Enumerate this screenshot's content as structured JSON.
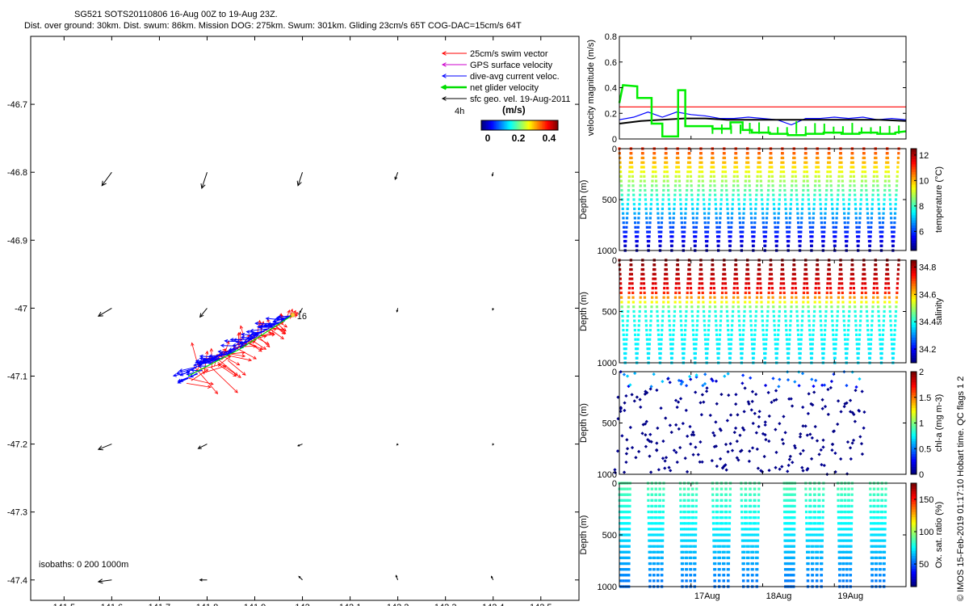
{
  "header": {
    "line1": "SG521 SOTS20110806 16-Aug 00Z to 19-Aug 23Z.",
    "line2": "Dist. over ground: 30km. Dist. swum: 86km. Mission DOG: 275km. Swum: 301km. Gliding 23cm/s 65T COG-DAC=15cm/s 64T"
  },
  "copyright": "© IMOS 15-Feb-2019 01:17:10 Hobart time. QC flags 1  2",
  "colors": {
    "swim": "#ff0000",
    "gps": "#cc00cc",
    "dac": "#0000ff",
    "net": "#00dd00",
    "geo": "#000000"
  },
  "chart_data": [
    {
      "type": "vector-map",
      "xlim": [
        141.43,
        142.58
      ],
      "ylim": [
        -47.43,
        -46.6
      ],
      "xticks": [
        "141.5",
        "141.6",
        "141.7",
        "141.8",
        "141.9",
        "142",
        "142.1",
        "142.2",
        "142.3",
        "142.4",
        "142.5"
      ],
      "yticks": [
        "-46.7",
        "-46.8",
        "-46.9",
        "-47",
        "-47.1",
        "-47.2",
        "-47.3",
        "-47.4"
      ],
      "legend": [
        {
          "label": "25cm/s swim vector",
          "color": "#ff0000"
        },
        {
          "label": "GPS surface velocity",
          "color": "#cc00cc"
        },
        {
          "label": "dive-avg current veloc.",
          "color": "#0000ff"
        },
        {
          "label": "net glider velocity",
          "color": "#00dd00"
        },
        {
          "label": "sfc geo. vel. 19-Aug-2011",
          "color": "#000000"
        }
      ],
      "colorbar": {
        "title": "(m/s)",
        "ticks": [
          "0",
          "0.2",
          "0.4"
        ],
        "range": [
          0,
          0.5
        ]
      },
      "time_marker": "4h",
      "day_label": "16",
      "isobaths_label": "isobaths: 0   200  1000m",
      "geo_vectors": [
        {
          "lon": 141.6,
          "lat": -46.8,
          "u": -0.11,
          "v": -0.15
        },
        {
          "lon": 141.8,
          "lat": -46.8,
          "u": -0.06,
          "v": -0.18
        },
        {
          "lon": 142.0,
          "lat": -46.8,
          "u": -0.05,
          "v": -0.15
        },
        {
          "lon": 142.2,
          "lat": -46.8,
          "u": -0.03,
          "v": -0.08
        },
        {
          "lon": 142.4,
          "lat": -46.8,
          "u": -0.01,
          "v": -0.04
        },
        {
          "lon": 141.6,
          "lat": -47.0,
          "u": -0.15,
          "v": -0.09
        },
        {
          "lon": 141.8,
          "lat": -47.0,
          "u": -0.08,
          "v": -0.1
        },
        {
          "lon": 142.0,
          "lat": -47.0,
          "u": -0.03,
          "v": -0.05
        },
        {
          "lon": 142.2,
          "lat": -47.0,
          "u": -0.01,
          "v": -0.04
        },
        {
          "lon": 142.4,
          "lat": -47.0,
          "u": -0.005,
          "v": -0.02
        },
        {
          "lon": 141.6,
          "lat": -47.2,
          "u": -0.15,
          "v": -0.06
        },
        {
          "lon": 141.8,
          "lat": -47.2,
          "u": -0.1,
          "v": -0.05
        },
        {
          "lon": 142.0,
          "lat": -47.2,
          "u": -0.05,
          "v": -0.02
        },
        {
          "lon": 142.2,
          "lat": -47.2,
          "u": -0.01,
          "v": -0.01
        },
        {
          "lon": 142.4,
          "lat": -47.2,
          "u": -0.005,
          "v": -0.01
        },
        {
          "lon": 141.6,
          "lat": -47.4,
          "u": -0.15,
          "v": -0.02
        },
        {
          "lon": 141.8,
          "lat": -47.4,
          "u": -0.08,
          "v": 0.0
        },
        {
          "lon": 142.0,
          "lat": -47.4,
          "u": -0.04,
          "v": 0.04
        },
        {
          "lon": 142.2,
          "lat": -47.4,
          "u": -0.02,
          "v": 0.05
        },
        {
          "lon": 142.4,
          "lat": -47.4,
          "u": -0.02,
          "v": 0.04
        }
      ],
      "track_start": {
        "lon": 141.98,
        "lat": -47.01
      },
      "track_end": {
        "lon": 141.76,
        "lat": -47.1
      }
    },
    {
      "type": "line",
      "ylabel": "velocity magnitude (m/s)",
      "ylim": [
        0,
        0.8
      ],
      "yticks": [
        "0",
        "0.2",
        "0.4",
        "0.6",
        "0.8"
      ],
      "xlim": [
        16.0,
        20.0
      ],
      "series": [
        {
          "color": "#ff0000",
          "x": [
            16.0,
            20.0
          ],
          "y": [
            0.25,
            0.25
          ]
        },
        {
          "color": "#0000ff",
          "x": [
            16.0,
            16.2,
            16.4,
            16.6,
            16.8,
            17.0,
            17.2,
            17.4,
            17.6,
            17.8,
            18.0,
            18.2,
            18.4,
            18.6,
            18.8,
            19.0,
            19.2,
            19.4,
            19.6,
            19.8,
            20.0
          ],
          "y": [
            0.15,
            0.17,
            0.21,
            0.17,
            0.21,
            0.19,
            0.18,
            0.16,
            0.16,
            0.17,
            0.16,
            0.15,
            0.11,
            0.16,
            0.16,
            0.17,
            0.16,
            0.17,
            0.15,
            0.16,
            0.15
          ]
        },
        {
          "color": "#000000",
          "x": [
            16.0,
            16.3,
            16.6,
            16.9,
            17.2,
            17.5,
            17.8,
            18.1,
            18.4,
            18.7,
            19.0,
            19.3,
            19.6,
            20.0
          ],
          "y": [
            0.12,
            0.14,
            0.15,
            0.16,
            0.16,
            0.15,
            0.15,
            0.15,
            0.15,
            0.15,
            0.15,
            0.15,
            0.15,
            0.14
          ]
        },
        {
          "color": "#00ee00",
          "x": [
            16.0,
            16.05,
            16.25,
            16.25,
            16.45,
            16.45,
            16.6,
            16.6,
            16.82,
            16.82,
            16.92,
            16.92,
            17.3,
            17.3,
            17.55,
            17.55,
            17.72,
            17.72,
            17.85,
            17.85,
            18.1,
            18.1,
            18.35,
            18.35,
            18.6,
            18.6,
            18.85,
            18.85,
            19.1,
            19.1,
            19.35,
            19.35,
            19.6,
            19.6,
            19.85,
            19.85,
            20.0
          ],
          "y": [
            0.28,
            0.42,
            0.41,
            0.32,
            0.32,
            0.12,
            0.12,
            0.02,
            0.02,
            0.38,
            0.38,
            0.1,
            0.1,
            0.08,
            0.08,
            0.13,
            0.13,
            0.07,
            0.07,
            0.05,
            0.05,
            0.04,
            0.04,
            0.03,
            0.03,
            0.04,
            0.04,
            0.05,
            0.05,
            0.04,
            0.04,
            0.05,
            0.05,
            0.04,
            0.04,
            0.05,
            0.06
          ]
        }
      ]
    },
    {
      "type": "scatter",
      "variable": "temperature",
      "ylabel": "Depth (m)",
      "colorbar_label": "temperature (°C)",
      "colorbar_ticks": [
        "6",
        "8",
        "10",
        "12"
      ],
      "crange": [
        4.5,
        12.5
      ],
      "ylim": [
        0,
        1000
      ],
      "yticks": [
        "0",
        "500",
        "1000"
      ],
      "xlim": [
        16.0,
        20.0
      ],
      "dives": {
        "start": 16.0,
        "end": 19.9,
        "count": 24
      },
      "surface_value": 11.2,
      "bottom_value": 4.8
    },
    {
      "type": "scatter",
      "variable": "salinity",
      "ylabel": "Depth (m)",
      "colorbar_label": "salinity",
      "colorbar_ticks": [
        "34.2",
        "34.4",
        "34.6",
        "34.8"
      ],
      "crange": [
        34.1,
        34.85
      ],
      "ylim": [
        0,
        1000
      ],
      "yticks": [
        "0",
        "500",
        "1000"
      ],
      "xlim": [
        16.0,
        20.0
      ],
      "dives": {
        "start": 16.0,
        "end": 19.9,
        "count": 24
      },
      "surface_value": 34.85,
      "bottom_value": 34.38
    },
    {
      "type": "scatter",
      "variable": "chl-a",
      "ylabel": "Depth (m)",
      "colorbar_label": "chl-a (mg m-3)",
      "colorbar_ticks": [
        "0",
        "0.5",
        "1",
        "1.5",
        "2"
      ],
      "crange": [
        0,
        2
      ],
      "ylim": [
        0,
        1000
      ],
      "yticks": [
        "0",
        "500",
        "1000"
      ],
      "xlim": [
        16.0,
        20.0
      ],
      "dives": {
        "start": 16.0,
        "end": 19.5,
        "count": 22
      },
      "surface_value": 0.45,
      "bottom_value": 0.0
    },
    {
      "type": "scatter",
      "variable": "oxygen",
      "ylabel": "Depth (m)",
      "colorbar_label": "Ox. sat. ratio (%)",
      "colorbar_ticks": [
        "50",
        "100",
        "150"
      ],
      "crange": [
        15,
        175
      ],
      "ylim": [
        0,
        1000
      ],
      "yticks": [
        "0",
        "500",
        "1000"
      ],
      "xlim": [
        16.0,
        20.0
      ],
      "xticks": [
        {
          "x": 17.0,
          "label": "17Aug"
        },
        {
          "x": 18.0,
          "label": "18Aug"
        },
        {
          "x": 19.0,
          "label": "19Aug"
        }
      ],
      "dive_groups": [
        [
          16.0,
          16.15
        ],
        [
          16.4,
          16.62
        ],
        [
          16.85,
          17.08
        ],
        [
          17.3,
          17.55
        ],
        [
          17.7,
          17.95
        ],
        [
          18.3,
          18.45
        ],
        [
          18.6,
          18.85
        ],
        [
          19.05,
          19.25
        ],
        [
          19.5,
          19.72
        ]
      ],
      "surface_value": 85,
      "bottom_value": 60
    }
  ]
}
